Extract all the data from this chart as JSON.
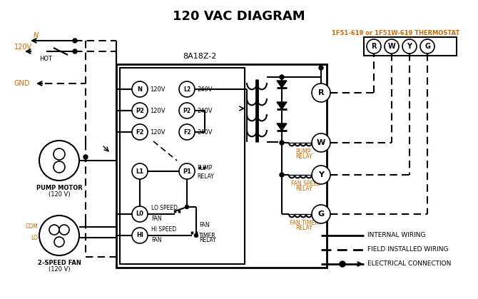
{
  "title": "120 VAC DIAGRAM",
  "bg_color": "#ffffff",
  "line_color": "#000000",
  "orange_color": "#cc6600",
  "thermostat_label": "1F51-619 or 1F51W-619 THERMOSTAT",
  "control_box_label": "8A18Z-2"
}
